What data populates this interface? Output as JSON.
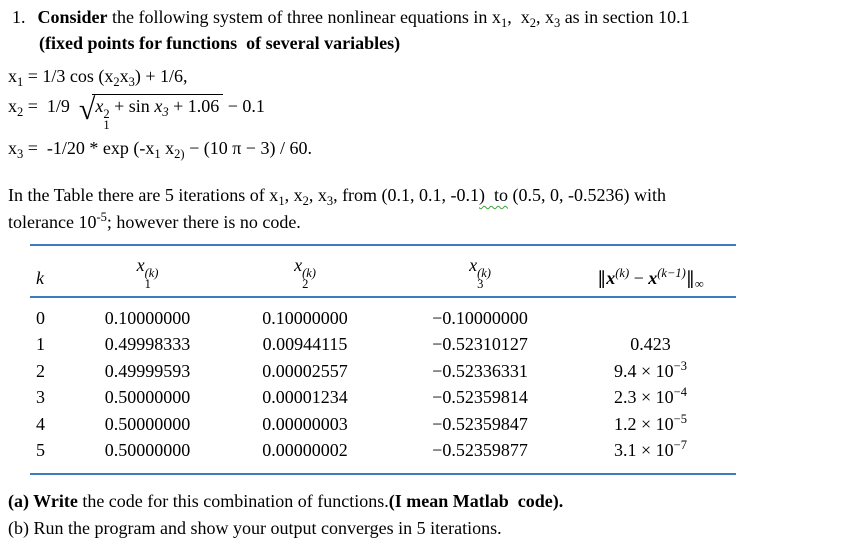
{
  "colors": {
    "table_rule": "#3e7dbd",
    "grammar_squiggle": "#3aa33a",
    "text": "#000000"
  },
  "problem": {
    "number": "1.",
    "intro": {
      "consider": "Consider",
      "after_consider": " the following system of three nonlinear equations in x",
      "sub1": "1",
      "between12": ",  x",
      "sub2": "2",
      "between23": ", x",
      "sub3": "3",
      "tail": " as in section 10.1",
      "line2": "(fixed points for functions  of several variables)"
    }
  },
  "equations": {
    "eq1": {
      "lhs": "x",
      "lhs_sub": "1",
      "eq": " = ",
      "p1": "1/3 cos (x",
      "s1": "2",
      "p2": "x",
      "s2": "3",
      "p3": ") + 1/6,"
    },
    "eq2": {
      "lhs": "x",
      "lhs_sub": "2",
      "eq": " =  ",
      "coef": "1/9  ",
      "radical": "√",
      "rad_x": "x",
      "rad_x_sup": "2",
      "rad_x_sub": "1",
      "rad_mid": " + sin ",
      "rad_x2": "x",
      "rad_x2_sub": "3",
      "rad_tail": " + 1.06",
      "outside": " − 0.1"
    },
    "eq3": {
      "lhs": "x",
      "lhs_sub": "3",
      "eq": " =  ",
      "p1": "-1/20 * exp (-x",
      "s1": "1",
      "p2": " x",
      "s2": "2)",
      "p3": " − (10 π − 3) / 60."
    }
  },
  "paragraph": {
    "p1": "In the Table there are 5 iterations of x",
    "s1": "1",
    "c1": ", x",
    "s2": "2",
    "c2": ", x",
    "s3": "3",
    "p2": ", from (0.1, 0.1, -0.1",
    "squiggle": ")  to",
    "p3": " (0.5, 0, -0.5236) with",
    "line2_pre": "tolerance 10",
    "tol_exp": "-5",
    "line2_post": "; however there is no code."
  },
  "table": {
    "headers": {
      "k": "k",
      "x_base": "x",
      "k_sup": "(k)",
      "x1_sub": "1",
      "x2_sub": "2",
      "x3_sub": "3",
      "norm": {
        "bar1": "‖",
        "x1": "x",
        "sup1": "(k)",
        "minus": " − ",
        "x2": "x",
        "sup2": "(k−1)",
        "bar2": "‖",
        "inf": "∞"
      }
    },
    "rows": [
      {
        "k": "0",
        "x1": "0.10000000",
        "x2": "0.10000000",
        "x3": "−0.10000000",
        "norm": "",
        "norm_exp": ""
      },
      {
        "k": "1",
        "x1": "0.49998333",
        "x2": "0.00944115",
        "x3": "−0.52310127",
        "norm": "0.423",
        "norm_exp": ""
      },
      {
        "k": "2",
        "x1": "0.49999593",
        "x2": "0.00002557",
        "x3": "−0.52336331",
        "norm": "9.4 × 10",
        "norm_exp": "−3"
      },
      {
        "k": "3",
        "x1": "0.50000000",
        "x2": "0.00001234",
        "x3": "−0.52359814",
        "norm": "2.3 × 10",
        "norm_exp": "−4"
      },
      {
        "k": "4",
        "x1": "0.50000000",
        "x2": "0.00000003",
        "x3": "−0.52359847",
        "norm": "1.2 × 10",
        "norm_exp": "−5"
      },
      {
        "k": "5",
        "x1": "0.50000000",
        "x2": "0.00000002",
        "x3": "−0.52359877",
        "norm": "3.1 × 10",
        "norm_exp": "−7"
      }
    ]
  },
  "footer": {
    "a_bold_prefix": "(a) Write",
    "a_text": " the code for this combination of functions.",
    "a_bold_suffix": "(I mean Matlab  code).",
    "b_text": "(b) Run the program and show your output converges in 5 iterations."
  }
}
